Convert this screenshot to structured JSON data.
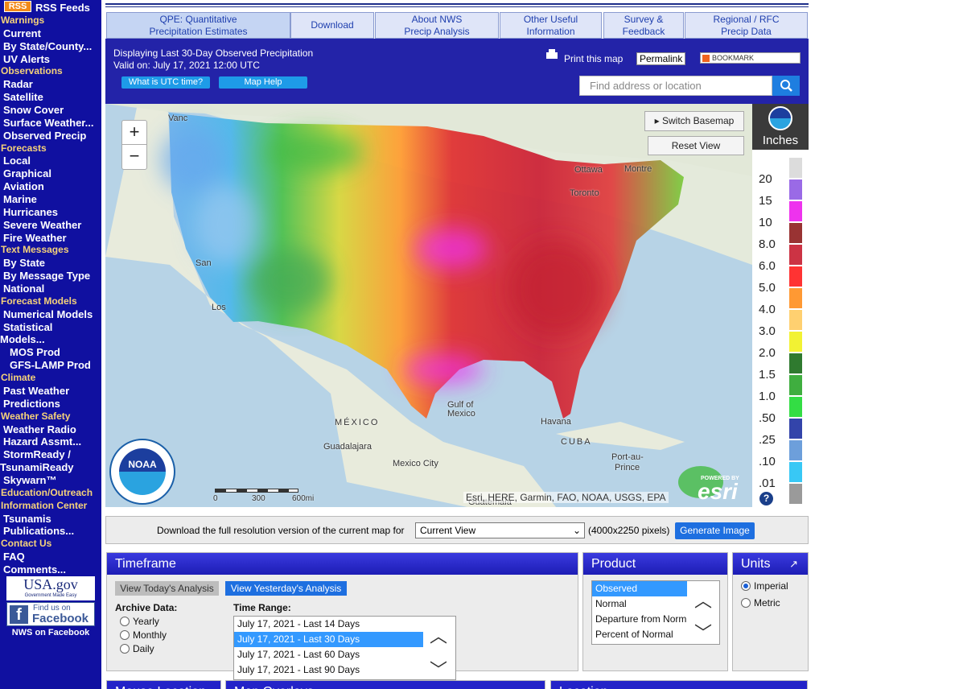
{
  "sidebar": {
    "rss_badge": "RSS",
    "rss_label": "RSS Feeds",
    "sections": [
      {
        "heading": "Warnings",
        "links": [
          "Current",
          "By State/County...",
          "UV Alerts"
        ]
      },
      {
        "heading": "Observations",
        "links": [
          "Radar",
          "Satellite",
          "Snow Cover",
          "Surface Weather...",
          "Observed Precip"
        ]
      },
      {
        "heading": "Forecasts",
        "links": [
          "Local",
          "Graphical",
          "Aviation",
          "Marine",
          "Hurricanes",
          "Severe Weather",
          "Fire Weather"
        ]
      },
      {
        "heading": "Text Messages",
        "links": [
          "By State",
          "By Message Type",
          "National"
        ]
      },
      {
        "heading": "Forecast Models",
        "links": [
          "Numerical Models",
          "Statistical Models...",
          "MOS Prod",
          "GFS-LAMP Prod"
        ]
      },
      {
        "heading": "Climate",
        "links": [
          "Past Weather",
          "Predictions"
        ]
      },
      {
        "heading": "Weather Safety",
        "links": [
          "Weather Radio",
          "Hazard Assmt...",
          "StormReady / TsunamiReady",
          "Skywarn™"
        ]
      },
      {
        "heading": "Education/Outreach",
        "links": []
      },
      {
        "heading": "Information Center",
        "links": [
          "Tsunamis",
          "Publications..."
        ]
      },
      {
        "heading": "Contact Us",
        "links": [
          "FAQ",
          "Comments..."
        ]
      }
    ],
    "usa_gov": "USA.gov",
    "usa_gov_tagline": "Government Made Easy",
    "facebook_find": "Find us on",
    "facebook_name": "Facebook",
    "facebook_link": "NWS on Facebook"
  },
  "tabs": [
    {
      "lines": [
        "QPE: Quantitative",
        "Precipitation Estimates"
      ]
    },
    {
      "lines": [
        "Download"
      ]
    },
    {
      "lines": [
        "About NWS",
        "Precip Analysis"
      ]
    },
    {
      "lines": [
        "Other Useful",
        "Information"
      ]
    },
    {
      "lines": [
        "Survey &",
        "Feedback"
      ]
    },
    {
      "lines": [
        "Regional / RFC",
        "Precip Data"
      ]
    }
  ],
  "header": {
    "title": "Displaying Last 30-Day Observed Precipitation",
    "valid": "Valid on: July 17, 2021 12:00 UTC",
    "utc_button": "What is UTC time?",
    "help_button": "Map Help",
    "print": "Print this map",
    "permalink": "Permalink",
    "bookmark": "BOOKMARK",
    "search_placeholder": "Find address or location"
  },
  "map": {
    "zoom_in": "+",
    "zoom_out": "−",
    "switch_basemap": "Switch Basemap",
    "reset_view": "Reset View",
    "labels": [
      "Vanc",
      "Ottawa",
      "Montre",
      "Toronto",
      "San",
      "Los",
      "Gulf of",
      "Mexico",
      "MÉXICO",
      "Guadalajara",
      "Mexico City",
      "Havana",
      "CUBA",
      "Port-au-",
      "Prince",
      "Guatemala"
    ],
    "scale": [
      "0",
      "300",
      "600mi"
    ],
    "attribution": "Esri, HERE, Garmin, FAO, NOAA, USGS, EPA",
    "powered_by": "POWERED BY",
    "esri": "esri",
    "noaa": "NOAA",
    "help": "?"
  },
  "legend": {
    "unit": "Inches",
    "labels": [
      "20",
      "15",
      "10",
      "8.0",
      "6.0",
      "5.0",
      "4.0",
      "3.0",
      "2.0",
      "1.5",
      "1.0",
      ".50",
      ".25",
      ".10",
      ".01"
    ],
    "colors": [
      "#dcdcdc",
      "#9a6ae6",
      "#ee33ee",
      "#993333",
      "#cc3344",
      "#ff3333",
      "#ff9933",
      "#ffd070",
      "#f2f233",
      "#2f7a2f",
      "#3fae3f",
      "#33dd44",
      "#3344aa",
      "#6d9fdb",
      "#38c8f5",
      "#9a9a9a"
    ]
  },
  "download": {
    "text": "Download the full resolution version of the current map for",
    "select": "Current View",
    "size": "(4000x2250 pixels)",
    "button": "Generate Image"
  },
  "timeframe": {
    "title": "Timeframe",
    "today": "View Today's Analysis",
    "yesterday": "View Yesterday's Analysis",
    "archive_label": "Archive Data:",
    "archive_options": [
      "Yearly",
      "Monthly",
      "Daily"
    ],
    "range_label": "Time Range:",
    "ranges": [
      "July 17, 2021 - Last 14 Days",
      "July 17, 2021 - Last 30 Days",
      "July 17, 2021 - Last 60 Days",
      "July 17, 2021 - Last 90 Days"
    ]
  },
  "product": {
    "title": "Product",
    "options": [
      "Observed",
      "Normal",
      "Departure from Norm",
      "Percent of Normal"
    ]
  },
  "units": {
    "title": "Units",
    "options": [
      "Imperial",
      "Metric"
    ]
  },
  "bottom_panels": [
    "Mouse Location",
    "Map Overlays",
    "Location"
  ]
}
